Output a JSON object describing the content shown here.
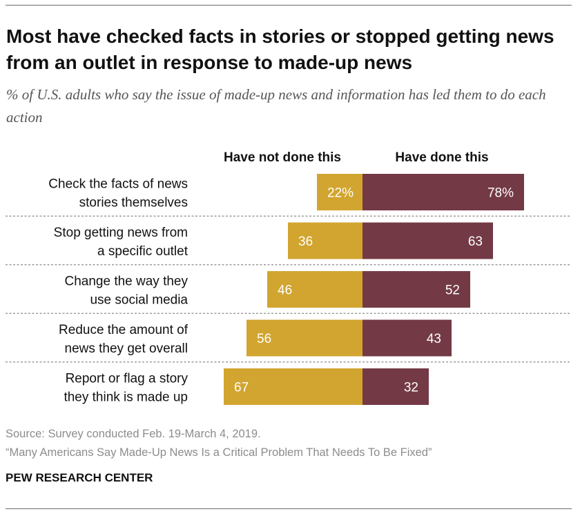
{
  "title": "Most have checked facts in stories or stopped getting news from an outlet in response to made-up news",
  "subtitle": "% of U.S. adults who say the issue of made-up news and information has led them to do each action",
  "source": "Source: Survey conducted Feb. 19-March 4, 2019.",
  "report": "“Many Americans Say Made-Up News Is a Critical Problem That Needs To Be Fixed”",
  "organization": "PEW RESEARCH CENTER",
  "colors": {
    "not_done": "#D1A52F",
    "done": "#733A46",
    "value_text": "#ffffff"
  },
  "chart_data": {
    "type": "bar",
    "orientation": "horizontal-diverging",
    "unit": "%",
    "categories": [
      [
        "Check the facts of news",
        "stories themselves"
      ],
      [
        "Stop getting news from",
        "a specific outlet"
      ],
      [
        "Change the way they",
        "use social media"
      ],
      [
        "Reduce the amount of",
        "news they get overall"
      ],
      [
        "Report or flag a story",
        "they think is made up"
      ]
    ],
    "series": [
      {
        "name": "Have not done this",
        "values": [
          22,
          36,
          46,
          56,
          67
        ],
        "labels": [
          "22%",
          "36",
          "46",
          "56",
          "67"
        ]
      },
      {
        "name": "Have done this",
        "values": [
          78,
          63,
          52,
          43,
          32
        ],
        "labels": [
          "78%",
          "63",
          "52",
          "43",
          "32"
        ]
      }
    ]
  }
}
